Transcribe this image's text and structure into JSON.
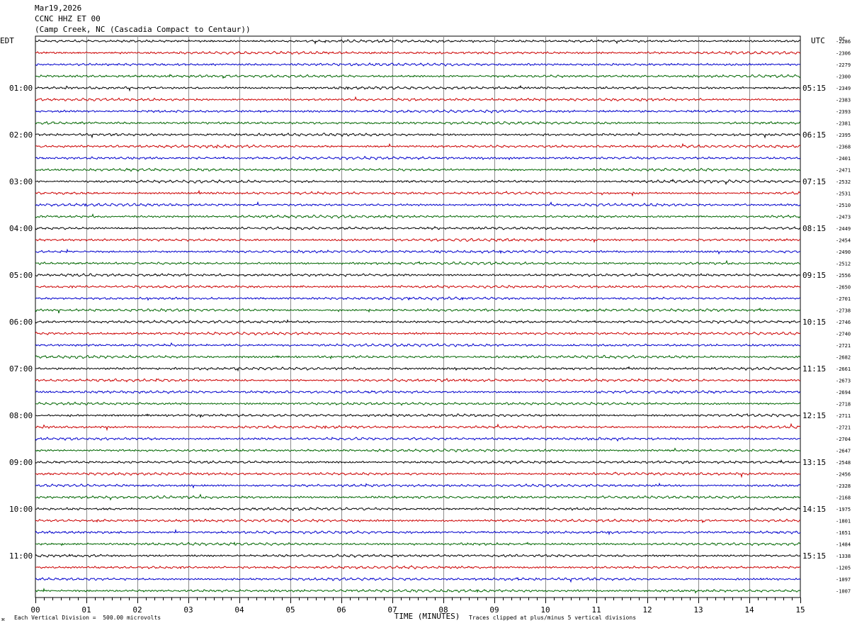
{
  "header": {
    "date": "Mar19,2026",
    "station": "CCNC HHZ ET 00",
    "location": "(Camp Creek, NC (Cascadia Compact to Centaur))"
  },
  "footer": {
    "scale_note": "Each Vertical Division =  500.00 microvolts",
    "clip_note": "Traces clipped at plus/minus 5 vertical divisions",
    "mark": "⌘"
  },
  "chart_data": {
    "type": "line",
    "title": "Mar19,2026 CCNC HHZ ET 00 (Camp Creek, NC (Cascadia Compact to Centaur))",
    "xlabel": "TIME (MINUTES)",
    "x_ticks": [
      "00",
      "01",
      "02",
      "03",
      "04",
      "05",
      "06",
      "07",
      "08",
      "09",
      "10",
      "11",
      "12",
      "13",
      "14",
      "15"
    ],
    "xlim": [
      0,
      15
    ],
    "left_axis_label": "EDT",
    "right_axis_label": "UTC",
    "dc_label": "DC",
    "left_time_labels": [
      "01:00",
      "02:00",
      "03:00",
      "04:00",
      "05:00",
      "06:00",
      "07:00",
      "08:00",
      "09:00",
      "10:00",
      "11:00"
    ],
    "right_time_labels": [
      "05:15",
      "06:15",
      "07:15",
      "08:15",
      "09:15",
      "10:15",
      "11:15",
      "12:15",
      "13:15",
      "14:15",
      "15:15"
    ],
    "time_label_trace_index": [
      4,
      8,
      12,
      16,
      20,
      24,
      28,
      32,
      36,
      40,
      44
    ],
    "trace_colors": [
      "#000000",
      "#cc0000",
      "#0000cc",
      "#006600"
    ],
    "trace_count": 48,
    "dc_offsets": [
      -2286,
      -2306,
      -2279,
      -2300,
      -2349,
      -2383,
      -2393,
      -2381,
      -2395,
      -2368,
      -2401,
      -2471,
      -2532,
      -2531,
      -2510,
      -2473,
      -2449,
      -2454,
      -2490,
      -2512,
      -2556,
      -2650,
      -2701,
      -2738,
      -2746,
      -2740,
      -2721,
      -2682,
      -2661,
      -2673,
      -2694,
      -2718,
      -2711,
      -2721,
      -2704,
      -2647,
      -2548,
      -2456,
      -2328,
      -2168,
      -1975,
      -1801,
      -1651,
      -1484,
      -1338,
      -1205,
      -1097,
      -1007
    ],
    "grid": true
  }
}
